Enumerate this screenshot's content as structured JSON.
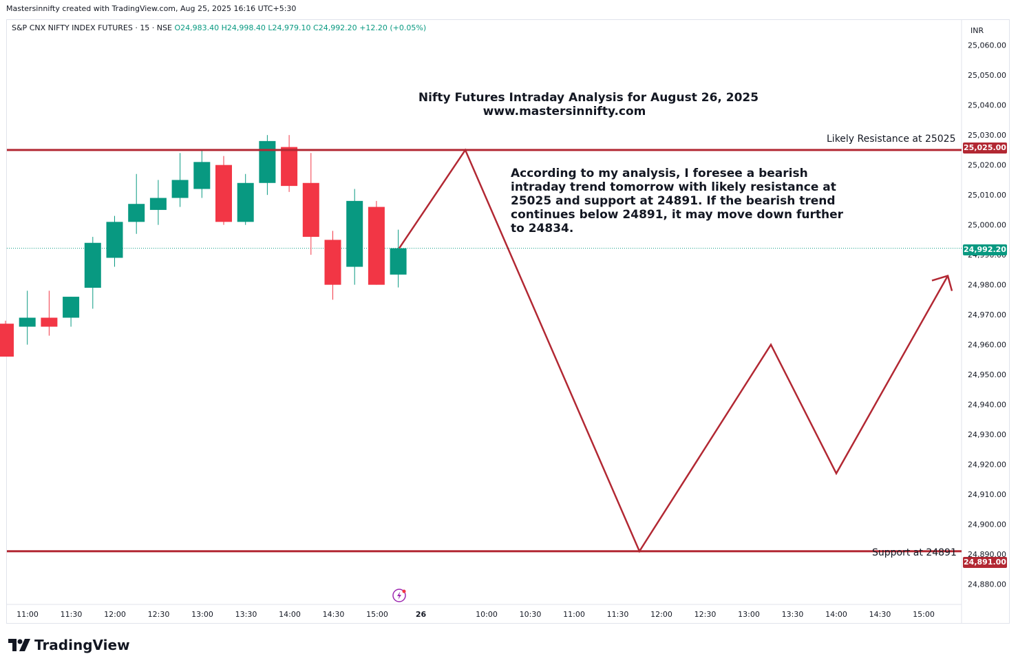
{
  "header": {
    "created_by": "Mastersinnifty created with TradingView.com, Aug 25, 2025 16:16 UTC+5:30"
  },
  "legend": {
    "symbol": "S&P CNX NIFTY INDEX FUTURES · 15 · NSE",
    "open": "O24,983.40",
    "high": "H24,998.40",
    "low": "L24,979.10",
    "close": "C24,992.20",
    "change": "+12.20 (+0.05%)"
  },
  "currency": "INR",
  "annotations": {
    "title": "Nifty Futures Intraday Analysis for August 26, 2025",
    "website": "www.mastersinnifty.com",
    "analysis": "According to my analysis, I foresee a bearish intraday trend tomorrow with likely resistance at 25025 and support at 24891. If the bearish trend continues below 24891, it may move down further to 24834.",
    "resistance_label": "Likely Resistance at 25025",
    "support_label": "Support at 24891"
  },
  "price_tags": {
    "resistance": "25,025.00",
    "last": "24,992.20",
    "support": "24,891.00"
  },
  "footer": {
    "brand": "TradingView"
  },
  "colors": {
    "up": "#089981",
    "down": "#f23645",
    "line": "#b22833",
    "text": "#131722",
    "axis": "#e0e3eb"
  },
  "chart_data": {
    "type": "candlestick",
    "title": "S&P CNX NIFTY INDEX FUTURES · 15 · NSE",
    "ylim": [
      24876,
      25062
    ],
    "y_ticks": [
      "24,880.00",
      "24,890.00",
      "24,900.00",
      "24,910.00",
      "24,920.00",
      "24,930.00",
      "24,940.00",
      "24,950.00",
      "24,960.00",
      "24,970.00",
      "24,980.00",
      "24,990.00",
      "25,000.00",
      "25,010.00",
      "25,020.00",
      "25,030.00",
      "25,040.00",
      "25,050.00",
      "25,060.00"
    ],
    "x_ticks": [
      "11:00",
      "11:30",
      "12:00",
      "12:30",
      "13:00",
      "13:30",
      "14:00",
      "14:30",
      "15:00",
      "26",
      "10:00",
      "10:30",
      "11:00",
      "11:30",
      "12:00",
      "12:30",
      "13:00",
      "13:30",
      "14:00",
      "14:30",
      "15:00"
    ],
    "candles": [
      {
        "o": 24967,
        "h": 24968,
        "l": 24956,
        "c": 24956
      },
      {
        "o": 24966,
        "h": 24978,
        "l": 24960,
        "c": 24969
      },
      {
        "o": 24969,
        "h": 24978,
        "l": 24963,
        "c": 24966
      },
      {
        "o": 24969,
        "h": 24976,
        "l": 24966,
        "c": 24976
      },
      {
        "o": 24979,
        "h": 24996,
        "l": 24972,
        "c": 24994
      },
      {
        "o": 24989,
        "h": 25003,
        "l": 24986,
        "c": 25001
      },
      {
        "o": 25001,
        "h": 25017,
        "l": 24997,
        "c": 25007
      },
      {
        "o": 25005,
        "h": 25015,
        "l": 25000,
        "c": 25009
      },
      {
        "o": 25009,
        "h": 25024,
        "l": 25006,
        "c": 25015
      },
      {
        "o": 25012,
        "h": 25025,
        "l": 25009,
        "c": 25021
      },
      {
        "o": 25020,
        "h": 25023,
        "l": 25000,
        "c": 25001
      },
      {
        "o": 25001,
        "h": 25017,
        "l": 25000,
        "c": 25014
      },
      {
        "o": 25014,
        "h": 25030,
        "l": 25010,
        "c": 25028
      },
      {
        "o": 25026,
        "h": 25030,
        "l": 25011,
        "c": 25013
      },
      {
        "o": 25014,
        "h": 25024,
        "l": 24990,
        "c": 24996
      },
      {
        "o": 24995,
        "h": 24998,
        "l": 24975,
        "c": 24980
      },
      {
        "o": 24986,
        "h": 25012,
        "l": 24980,
        "c": 25008
      },
      {
        "o": 25006,
        "h": 25008,
        "l": 24980,
        "c": 24980
      },
      {
        "o": 24983.4,
        "h": 24998.4,
        "l": 24979.1,
        "c": 24992.2
      }
    ],
    "levels": {
      "resistance": 25025,
      "support": 24891,
      "last": 24992.2
    },
    "projection": [
      25025,
      24891,
      24960,
      24917,
      24983
    ]
  }
}
